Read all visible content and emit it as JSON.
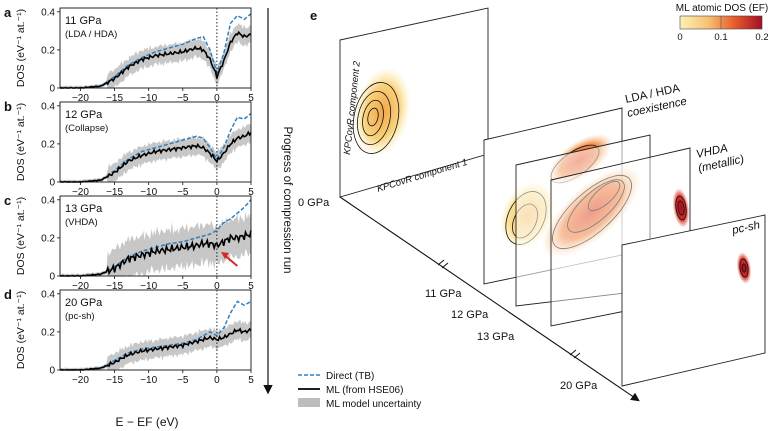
{
  "figure": {
    "panel_labels": [
      "a",
      "b",
      "c",
      "d",
      "e"
    ],
    "progress_label": "Progress of compression run",
    "dos_y_label": "DOS (eV⁻¹ at.⁻¹)",
    "dos_x_label": "E − EF (eV)",
    "x_tick_labels": [
      "−20",
      "−15",
      "−10",
      "−5",
      "0",
      "5"
    ],
    "y_tick_labels": [
      "0",
      "0.2",
      "0.4"
    ],
    "legend": {
      "direct": "Direct (TB)",
      "ml": "ML (from HSE06)",
      "uncertainty": "ML model uncertainty"
    },
    "colorbar": {
      "title": "ML atomic DOS (EF)",
      "ticks": [
        "0",
        "0.1",
        "0.2"
      ]
    },
    "panel_e": {
      "pressure_labels": [
        "0 GPa",
        "11 GPa",
        "12 GPa",
        "13 GPa",
        "20 GPa"
      ],
      "axis1_label": "KPCovR component 1",
      "axis2_label": "KPCovR component 2",
      "annotations": {
        "lda_hda_1": "LDA / HDA",
        "lda_hda_2": "coexistence",
        "vhda_1": "VHDA",
        "vhda_2": "(metallic)",
        "pc_sh": "pc-sh"
      }
    },
    "colors": {
      "direct": "#2f7fbf",
      "ml": "#000000",
      "uncertainty": "#bdbdbd",
      "arrow": "#d62728",
      "cmap_low": "#fbe9a3",
      "cmap_mid": "#f08040",
      "cmap_high": "#b5102a"
    }
  },
  "chart_data": [
    {
      "type": "line",
      "panel": "a",
      "title_line1": "11 GPa",
      "title_line2": "(LDA / HDA)",
      "xlim": [
        -23,
        5
      ],
      "ylim": [
        0,
        0.42
      ],
      "x": [
        -23,
        -20,
        -17,
        -15,
        -13,
        -11,
        -9,
        -7,
        -5,
        -3,
        -2,
        -1,
        0,
        1,
        2,
        3,
        4,
        5
      ],
      "series": [
        {
          "name": "Direct (TB)",
          "values": [
            0,
            0,
            0.01,
            0.06,
            0.12,
            0.16,
            0.19,
            0.21,
            0.23,
            0.26,
            0.27,
            0.2,
            0.08,
            0.18,
            0.34,
            0.38,
            0.36,
            0.39
          ]
        },
        {
          "name": "ML (from HSE06)",
          "values": [
            0,
            0,
            0.01,
            0.05,
            0.11,
            0.15,
            0.17,
            0.18,
            0.19,
            0.21,
            0.2,
            0.15,
            0.06,
            0.14,
            0.24,
            0.29,
            0.27,
            0.28
          ]
        }
      ]
    },
    {
      "type": "line",
      "panel": "b",
      "title_line1": "12 GPa",
      "title_line2": "(Collapse)",
      "xlim": [
        -23,
        5
      ],
      "ylim": [
        0,
        0.42
      ],
      "x": [
        -23,
        -20,
        -17,
        -15,
        -13,
        -11,
        -9,
        -7,
        -5,
        -3,
        -2,
        -1,
        0,
        1,
        2,
        3,
        4,
        5
      ],
      "series": [
        {
          "name": "Direct (TB)",
          "values": [
            0,
            0,
            0.01,
            0.06,
            0.12,
            0.16,
            0.18,
            0.2,
            0.22,
            0.24,
            0.23,
            0.18,
            0.12,
            0.18,
            0.27,
            0.34,
            0.33,
            0.36
          ]
        },
        {
          "name": "ML (from HSE06)",
          "values": [
            0,
            0,
            0.01,
            0.05,
            0.11,
            0.14,
            0.16,
            0.17,
            0.18,
            0.19,
            0.18,
            0.15,
            0.11,
            0.15,
            0.2,
            0.23,
            0.24,
            0.26
          ]
        }
      ]
    },
    {
      "type": "line",
      "panel": "c",
      "title_line1": "13 GPa",
      "title_line2": "(VHDA)",
      "xlim": [
        -23,
        5
      ],
      "ylim": [
        0,
        0.42
      ],
      "x": [
        -23,
        -20,
        -17,
        -15,
        -13,
        -11,
        -9,
        -7,
        -5,
        -3,
        -2,
        -1,
        0,
        1,
        2,
        3,
        4,
        5
      ],
      "series": [
        {
          "name": "Direct (TB)",
          "values": [
            0,
            0,
            0.01,
            0.05,
            0.1,
            0.13,
            0.15,
            0.17,
            0.18,
            0.2,
            0.21,
            0.22,
            0.24,
            0.28,
            0.3,
            0.33,
            0.36,
            0.4
          ]
        },
        {
          "name": "ML (from HSE06)",
          "values": [
            0,
            0,
            0.01,
            0.04,
            0.09,
            0.11,
            0.13,
            0.14,
            0.15,
            0.16,
            0.17,
            0.17,
            0.16,
            0.18,
            0.2,
            0.2,
            0.21,
            0.22
          ]
        }
      ]
    },
    {
      "type": "line",
      "panel": "d",
      "title_line1": "20 GPa",
      "title_line2": "(pc-sh)",
      "xlim": [
        -23,
        5
      ],
      "ylim": [
        0,
        0.42
      ],
      "x": [
        -23,
        -20,
        -17,
        -15,
        -13,
        -11,
        -9,
        -7,
        -5,
        -3,
        -2,
        -1,
        0,
        1,
        2,
        3,
        4,
        5
      ],
      "series": [
        {
          "name": "Direct (TB)",
          "values": [
            0,
            0,
            0.01,
            0.05,
            0.09,
            0.11,
            0.12,
            0.13,
            0.14,
            0.16,
            0.18,
            0.2,
            0.18,
            0.22,
            0.3,
            0.36,
            0.34,
            0.36
          ]
        },
        {
          "name": "ML (from HSE06)",
          "values": [
            0,
            0,
            0.01,
            0.04,
            0.08,
            0.1,
            0.11,
            0.12,
            0.13,
            0.15,
            0.16,
            0.17,
            0.16,
            0.17,
            0.19,
            0.21,
            0.2,
            0.21
          ]
        }
      ]
    }
  ]
}
